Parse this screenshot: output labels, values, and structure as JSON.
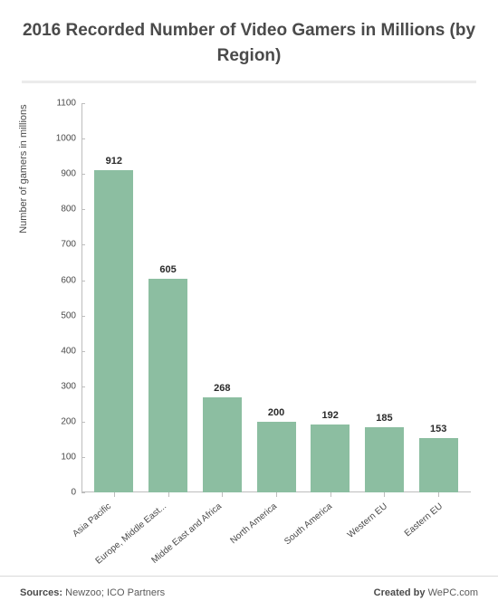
{
  "chart": {
    "type": "bar",
    "title": "2016 Recorded Number of Video Gamers in Millions (by Region)",
    "title_fontsize": 19,
    "title_color": "#4a4a4a",
    "ylabel": "Number of gamers in millions",
    "label_fontsize": 11,
    "ylim": [
      0,
      1100
    ],
    "ytick_step": 100,
    "yticks": [
      0,
      100,
      200,
      300,
      400,
      500,
      600,
      700,
      800,
      900,
      1000,
      1100
    ],
    "categories": [
      "Asia Pacific",
      "Europe, Middle East...",
      "Midde East and Africa",
      "North America",
      "South America",
      "Western EU",
      "Eastern EU"
    ],
    "values": [
      912,
      605,
      268,
      200,
      192,
      185,
      153
    ],
    "bar_color": "#8cbea1",
    "value_label_color": "#2a2a2a",
    "value_label_fontsize": 11,
    "axis_color": "#bdbdbd",
    "background_color": "#ffffff",
    "bar_width_ratio": 0.72,
    "x_label_rotation_deg": -40
  },
  "footer": {
    "sources_label": "Sources:",
    "sources_value": "Newzoo; ICO Partners",
    "created_label": "Created by",
    "created_value": "WePC.com"
  }
}
